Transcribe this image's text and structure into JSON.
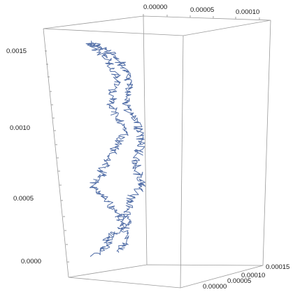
{
  "chart_data": {
    "type": "line3d",
    "title": "",
    "axes": {
      "x": {
        "label": "",
        "ticks": [
          "0.00000",
          "0.00005",
          "0.00010",
          "0.00015"
        ],
        "range": [
          -3e-05,
          0.00016
        ]
      },
      "y": {
        "label": "",
        "ticks": [
          "0.00000",
          "0.00005",
          "0.00010"
        ],
        "range": [
          -3e-05,
          0.00012
        ]
      },
      "z": {
        "label": "",
        "ticks": [
          "0.0000",
          "0.0005",
          "0.0010",
          "0.0015"
        ],
        "range": [
          -0.0001,
          0.0016
        ]
      }
    },
    "boxed": true,
    "grid": false,
    "series": [
      {
        "color": "#5470a8",
        "description_points": [
          [
            0.0,
            0.0,
            -2e-05
          ],
          [
            3e-05,
            2e-05,
            5e-05
          ],
          [
            2e-05,
            4e-05,
            0.00012
          ],
          [
            5e-05,
            6e-05,
            0.0002
          ],
          [
            4e-05,
            7e-05,
            0.0003
          ],
          [
            1e-05,
            5e-05,
            0.0004
          ],
          [
            -1e-05,
            3e-05,
            0.0005
          ],
          [
            1e-05,
            4e-05,
            0.0006
          ],
          [
            2e-05,
            6e-05,
            0.0007
          ],
          [
            3e-05,
            8e-05,
            0.0008
          ],
          [
            5e-05,
            9e-05,
            0.0009
          ],
          [
            4e-05,
            8e-05,
            0.001
          ],
          [
            3e-05,
            6e-05,
            0.0011
          ],
          [
            4e-05,
            5e-05,
            0.0012
          ],
          [
            5e-05,
            6e-05,
            0.0013
          ],
          [
            4e-05,
            4e-05,
            0.0014
          ],
          [
            2e-05,
            2e-05,
            0.0015
          ],
          [
            0.0,
            1e-05,
            0.00155
          ],
          [
            3e-05,
            4e-05,
            0.0015
          ],
          [
            6e-05,
            6e-05,
            0.0014
          ],
          [
            8e-05,
            5e-05,
            0.0013
          ],
          [
            9e-05,
            3e-05,
            0.0012
          ],
          [
            8e-05,
            2e-05,
            0.0011
          ],
          [
            9e-05,
            4e-05,
            0.001
          ],
          [
            0.00011,
            3e-05,
            0.0009
          ],
          [
            0.00012,
            2e-05,
            0.0008
          ],
          [
            0.00011,
            1e-05,
            0.0007
          ],
          [
            0.0001,
            3e-05,
            0.0006
          ],
          [
            0.00011,
            4e-05,
            0.0005
          ],
          [
            9e-05,
            2e-05,
            0.0004
          ],
          [
            8e-05,
            1e-05,
            0.0003
          ],
          [
            7e-05,
            3e-05,
            0.0002
          ],
          [
            6e-05,
            5e-05,
            0.0001
          ],
          [
            5e-05,
            3e-05,
            0.0
          ]
        ]
      }
    ]
  }
}
